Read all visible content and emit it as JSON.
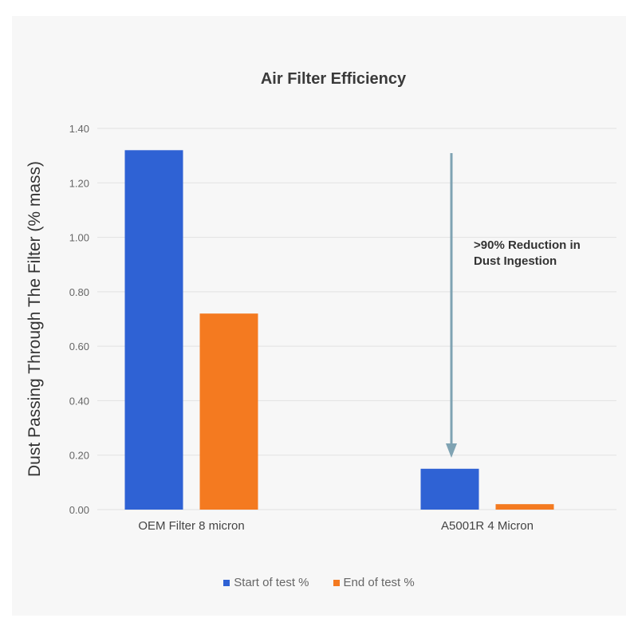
{
  "chart_data": {
    "type": "bar",
    "title": "Air Filter Efficiency",
    "ylabel": "Dust Passing Through The Filter (% mass)",
    "xlabel": "",
    "categories": [
      "OEM Filter 8 micron",
      "A5001R 4 Micron"
    ],
    "series": [
      {
        "name": "Start of test %",
        "values": [
          1.32,
          0.15
        ],
        "color": "#2f62d4"
      },
      {
        "name": "End of  test %",
        "values": [
          0.72,
          0.02
        ],
        "color": "#f47a20"
      }
    ],
    "ylim": [
      0,
      1.4
    ],
    "yticks": [
      0,
      0.2,
      0.4,
      0.6,
      0.8,
      1.0,
      1.2,
      1.4
    ],
    "ytick_labels": [
      "0.00",
      "0.20",
      "0.40",
      "0.60",
      "0.80",
      "1.00",
      "1.20",
      "1.40"
    ],
    "grid": true,
    "legend": "bottom",
    "annotation": {
      "lines": [
        ">90% Reduction in",
        "Dust Ingestion"
      ],
      "arrow_color": "#7fa3b3"
    }
  }
}
